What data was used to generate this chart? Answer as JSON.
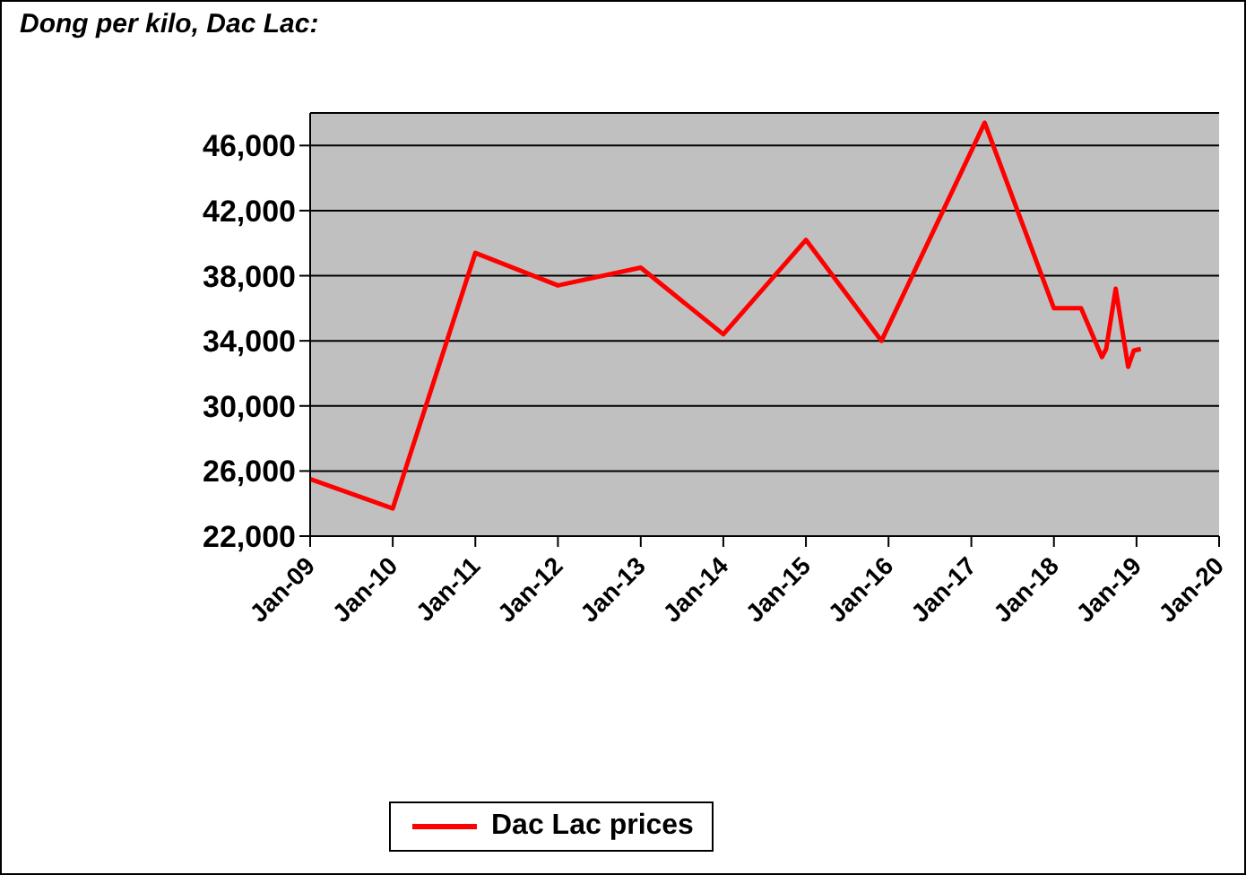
{
  "chart_data": {
    "type": "line",
    "title": "Dong per kilo, Dac Lac:",
    "x": [
      "2009-01",
      "2010-01",
      "2011-01",
      "2012-01",
      "2013-01",
      "2014-01",
      "2015-01",
      "2015-12",
      "2017-03",
      "2018-01",
      "2018-05",
      "2018-08-01",
      "2018-08-20",
      "2018-10-01",
      "2018-11-25",
      "2018-12-20",
      "2019-01-20"
    ],
    "series": [
      {
        "name": "Dac Lac prices",
        "color": "#ff0000",
        "values": [
          25500,
          23700,
          39400,
          37400,
          38500,
          34400,
          40200,
          34000,
          47400,
          36000,
          36000,
          33000,
          33500,
          37200,
          32400,
          33400,
          33500
        ]
      }
    ],
    "xlim": [
      "2009-01",
      "2020-01"
    ],
    "xticks": [
      {
        "value": "2009-01",
        "label": "Jan-09"
      },
      {
        "value": "2010-01",
        "label": "Jan-10"
      },
      {
        "value": "2011-01",
        "label": "Jan-11"
      },
      {
        "value": "2012-01",
        "label": "Jan-12"
      },
      {
        "value": "2013-01",
        "label": "Jan-13"
      },
      {
        "value": "2014-01",
        "label": "Jan-14"
      },
      {
        "value": "2015-01",
        "label": "Jan-15"
      },
      {
        "value": "2016-01",
        "label": "Jan-16"
      },
      {
        "value": "2017-01",
        "label": "Jan-17"
      },
      {
        "value": "2018-01",
        "label": "Jan-18"
      },
      {
        "value": "2019-01",
        "label": "Jan-19"
      },
      {
        "value": "2020-01",
        "label": "Jan-20"
      }
    ],
    "ylim": [
      22000,
      48000
    ],
    "yticks": [
      {
        "value": 22000,
        "label": "22,000"
      },
      {
        "value": 26000,
        "label": "26,000"
      },
      {
        "value": 30000,
        "label": "30,000"
      },
      {
        "value": 34000,
        "label": "34,000"
      },
      {
        "value": 38000,
        "label": "38,000"
      },
      {
        "value": 42000,
        "label": "42,000"
      },
      {
        "value": 46000,
        "label": "46,000"
      }
    ],
    "grid": "y",
    "legend": "bottom",
    "marker": "none",
    "line_style": "solid"
  }
}
